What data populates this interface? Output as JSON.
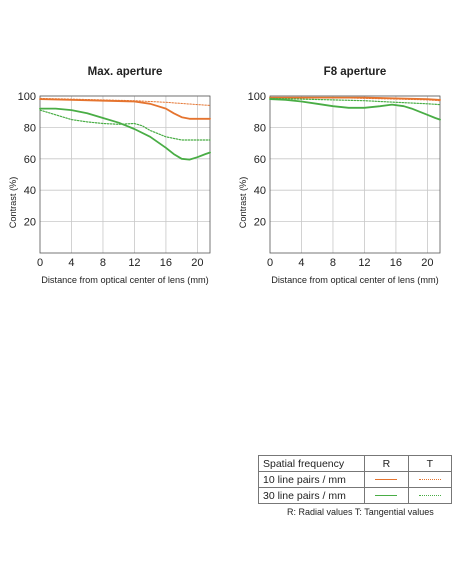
{
  "colors": {
    "orange": "#e5742f",
    "green": "#49ad45",
    "grid": "#c8c8c8",
    "axis": "#555555"
  },
  "chart_data": [
    {
      "type": "line",
      "title": "Max. aperture",
      "xlabel": "Distance from optical center of lens (mm)",
      "ylabel": "Contrast (%)",
      "xlim": [
        0,
        21.6
      ],
      "ylim": [
        0,
        100
      ],
      "xticks": [
        0,
        4,
        8,
        12,
        16,
        20
      ],
      "yticks": [
        20,
        40,
        60,
        80,
        100
      ],
      "grid": true,
      "series": [
        {
          "key": "10R",
          "x": [
            0,
            4,
            8,
            12,
            14,
            16,
            17,
            18,
            19,
            20,
            21.6
          ],
          "y": [
            98,
            97.5,
            97,
            96.5,
            95,
            92,
            89,
            86.5,
            85.5,
            85.5,
            85.5
          ]
        },
        {
          "key": "10T",
          "x": [
            0,
            4,
            8,
            12,
            16,
            20,
            21.6
          ],
          "y": [
            98.5,
            98,
            97.5,
            97,
            96,
            94.5,
            94
          ]
        },
        {
          "key": "30R",
          "x": [
            0,
            2,
            4,
            6,
            8,
            10,
            12,
            14,
            16,
            17,
            18,
            19,
            20,
            21,
            21.6
          ],
          "y": [
            92,
            92,
            91,
            89,
            86,
            83,
            79,
            74,
            67,
            63,
            60,
            59.5,
            61,
            63,
            64
          ]
        },
        {
          "key": "30T",
          "x": [
            0,
            2,
            4,
            6,
            8,
            10,
            12,
            13,
            14,
            16,
            18,
            20,
            21.6
          ],
          "y": [
            91,
            88,
            85,
            83.5,
            82.5,
            82,
            82.5,
            81,
            78,
            74,
            72,
            72,
            72
          ]
        }
      ]
    },
    {
      "type": "line",
      "title": "F8 aperture",
      "xlabel": "Distance from optical center of lens (mm)",
      "ylabel": "Contrast (%)",
      "xlim": [
        0,
        21.6
      ],
      "ylim": [
        0,
        100
      ],
      "xticks": [
        0,
        4,
        8,
        12,
        16,
        20
      ],
      "yticks": [
        20,
        40,
        60,
        80,
        100
      ],
      "grid": true,
      "series": [
        {
          "key": "10R",
          "x": [
            0,
            4,
            8,
            12,
            16,
            20,
            21.6
          ],
          "y": [
            99,
            99,
            99,
            99,
            98.5,
            98,
            97.5
          ]
        },
        {
          "key": "10T",
          "x": [
            0,
            4,
            8,
            12,
            16,
            20,
            21.6
          ],
          "y": [
            99,
            99,
            99,
            98.5,
            98,
            97.5,
            97
          ]
        },
        {
          "key": "30R",
          "x": [
            0,
            2,
            4,
            6,
            8,
            10,
            12,
            14,
            15.5,
            17,
            18,
            19,
            20,
            21,
            21.6
          ],
          "y": [
            98,
            97.5,
            96.5,
            95,
            93.5,
            92.5,
            92.5,
            93.5,
            94.5,
            93.5,
            92,
            90,
            88,
            86,
            85
          ]
        },
        {
          "key": "30T",
          "x": [
            0,
            4,
            8,
            12,
            16,
            20,
            21.6
          ],
          "y": [
            98.5,
            98,
            97.5,
            97,
            96,
            95,
            94.5
          ]
        }
      ]
    }
  ],
  "legend": {
    "header": {
      "label": "Spatial frequency",
      "r": "R",
      "t": "T"
    },
    "rows": [
      {
        "label": "10 line pairs / mm",
        "color": "orange"
      },
      {
        "label": "30 line pairs / mm",
        "color": "green"
      }
    ],
    "note": "R: Radial values  T: Tangential values"
  }
}
